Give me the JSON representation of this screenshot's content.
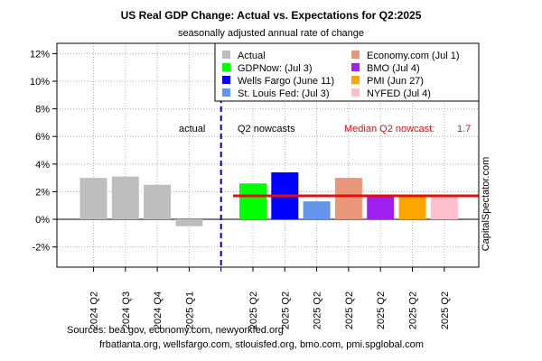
{
  "chart_data": {
    "type": "bar",
    "title": "US Real GDP Change: Actual vs. Expectations for Q2:2025",
    "subtitle": "seasonally adjusted annual rate of change",
    "ylim": [
      -3,
      12.5
    ],
    "yticks": [
      -2,
      0,
      2,
      4,
      6,
      8,
      10,
      12
    ],
    "ytick_labels": [
      "-2%",
      "0%",
      "2%",
      "4%",
      "6%",
      "8%",
      "10%",
      "12%"
    ],
    "grid": true,
    "categories": [
      "2024 Q2",
      "2024 Q3",
      "2024 Q4",
      "2025 Q1",
      "",
      "2025 Q2",
      "2025 Q2",
      "2025 Q2",
      "2025 Q2",
      "2025 Q2",
      "2025 Q2",
      "2025 Q2"
    ],
    "bars": [
      {
        "category": "2024 Q2",
        "series": "Actual",
        "value": 3.0,
        "color": "#bebebe"
      },
      {
        "category": "2024 Q3",
        "series": "Actual",
        "value": 3.1,
        "color": "#bebebe"
      },
      {
        "category": "2024 Q4",
        "series": "Actual",
        "value": 2.5,
        "color": "#bebebe"
      },
      {
        "category": "2025 Q1",
        "series": "Actual",
        "value": -0.5,
        "color": "#bebebe"
      },
      {
        "category": "2025 Q2",
        "series": "GDPNow: (Jul 3)",
        "value": 2.6,
        "color": "#00ff00"
      },
      {
        "category": "2025 Q2",
        "series": "Wells Fargo (June 11)",
        "value": 3.4,
        "color": "#0000ff"
      },
      {
        "category": "2025 Q2",
        "series": "St. Louis Fed: (Jul 3)",
        "value": 1.3,
        "color": "#6495ed"
      },
      {
        "category": "2025 Q2",
        "series": "Economy.com (Jul 1)",
        "value": 3.0,
        "color": "#e9967a"
      },
      {
        "category": "2025 Q2",
        "series": "BMO (Jul 4)",
        "value": 1.7,
        "color": "#a020f0"
      },
      {
        "category": "2025 Q2",
        "series": "PMI (Jun 27)",
        "value": 1.7,
        "color": "#ffa500"
      },
      {
        "category": "2025 Q2",
        "series": "NYFED (Jul 4)",
        "value": 1.7,
        "color": "#ffc0cb"
      }
    ],
    "legend": {
      "placement": "top-right",
      "entries": [
        {
          "label": "Actual",
          "color": "#bebebe"
        },
        {
          "label": "GDPNow: (Jul 3)",
          "color": "#00ff00"
        },
        {
          "label": "Wells Fargo (June 11)",
          "color": "#0000ff"
        },
        {
          "label": "St. Louis Fed: (Jul 3)",
          "color": "#6495ed"
        },
        {
          "label": "Economy.com (Jul 1)",
          "color": "#e9967a"
        },
        {
          "label": "BMO (Jul 4)",
          "color": "#a020f0"
        },
        {
          "label": "PMI (Jun 27)",
          "color": "#ffa500"
        },
        {
          "label": "NYFED (Jul 4)",
          "color": "#ffc0cb"
        }
      ]
    },
    "median_line": {
      "value": 1.7,
      "color": "#e01010",
      "label": "Median Q2 nowcast:",
      "value_label": "1.7"
    },
    "annotations": {
      "actual_label": "actual",
      "nowcast_label": "Q2 nowcasts"
    },
    "divider_color": "#0000cc"
  },
  "watermark": "CapitalSpectator.com",
  "sources": {
    "line1": "Sources: bea.gov, economy.com, newyorkfed.org",
    "line2": "frbatlanta.org, wellsfargo.com, stlouisfed.org, bmo.com, pmi.spglobal.com"
  }
}
